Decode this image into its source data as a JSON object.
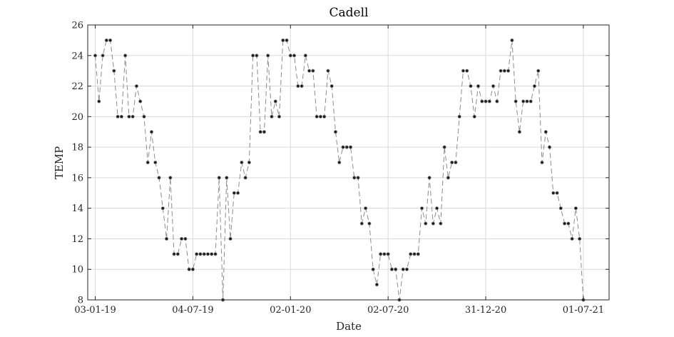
{
  "chart_data": {
    "type": "line",
    "title": "Cadell",
    "xlabel": "Date",
    "ylabel": "TEMP",
    "ylim": [
      8,
      26
    ],
    "xlim": [
      "2018-12-20",
      "2021-08-18"
    ],
    "yticks": [
      8,
      10,
      12,
      14,
      16,
      18,
      20,
      22,
      24,
      26
    ],
    "xticks": [
      {
        "date": "2019-01-03",
        "label": "03-01-19"
      },
      {
        "date": "2019-07-04",
        "label": "04-07-19"
      },
      {
        "date": "2020-01-02",
        "label": "02-01-20"
      },
      {
        "date": "2020-07-02",
        "label": "02-07-20"
      },
      {
        "date": "2020-12-31",
        "label": "31-12-20"
      },
      {
        "date": "2021-07-01",
        "label": "01-07-21"
      }
    ],
    "grid": true,
    "line_style": "dashed",
    "line_color": "#8c8c8c",
    "marker_color": "#1a1a1a",
    "series": [
      {
        "x": [
          "2019-01-03",
          "2019-01-10",
          "2019-01-17",
          "2019-01-24",
          "2019-01-31",
          "2019-02-07",
          "2019-02-14",
          "2019-02-21",
          "2019-02-28",
          "2019-03-07",
          "2019-03-14",
          "2019-03-21",
          "2019-03-28",
          "2019-04-04",
          "2019-04-11",
          "2019-04-18",
          "2019-04-25",
          "2019-05-02",
          "2019-05-09",
          "2019-05-16",
          "2019-05-23",
          "2019-05-30",
          "2019-06-06",
          "2019-06-13",
          "2019-06-20",
          "2019-06-27",
          "2019-07-04",
          "2019-07-11",
          "2019-07-18",
          "2019-07-25",
          "2019-08-01",
          "2019-08-08",
          "2019-08-15",
          "2019-08-22",
          "2019-08-29",
          "2019-09-05",
          "2019-09-12",
          "2019-09-19",
          "2019-09-26",
          "2019-10-03",
          "2019-10-10",
          "2019-10-17",
          "2019-10-24",
          "2019-10-31",
          "2019-11-07",
          "2019-11-14",
          "2019-11-21",
          "2019-11-28",
          "2019-12-05",
          "2019-12-12",
          "2019-12-19",
          "2019-12-26",
          "2020-01-02",
          "2020-01-09",
          "2020-01-16",
          "2020-01-23",
          "2020-01-30",
          "2020-02-06",
          "2020-02-13",
          "2020-02-20",
          "2020-02-27",
          "2020-03-05",
          "2020-03-12",
          "2020-03-19",
          "2020-03-26",
          "2020-04-02",
          "2020-04-09",
          "2020-04-16",
          "2020-04-23",
          "2020-04-30",
          "2020-05-07",
          "2020-05-14",
          "2020-05-21",
          "2020-05-28",
          "2020-06-04",
          "2020-06-11",
          "2020-06-18",
          "2020-06-25",
          "2020-07-02",
          "2020-07-09",
          "2020-07-16",
          "2020-07-23",
          "2020-07-30",
          "2020-08-06",
          "2020-08-13",
          "2020-08-20",
          "2020-08-27",
          "2020-09-03",
          "2020-09-10",
          "2020-09-17",
          "2020-09-24",
          "2020-10-01",
          "2020-10-08",
          "2020-10-15",
          "2020-10-22",
          "2020-10-29",
          "2020-11-05",
          "2020-11-12",
          "2020-11-19",
          "2020-11-26",
          "2020-12-03",
          "2020-12-10",
          "2020-12-17",
          "2020-12-24",
          "2020-12-31",
          "2021-01-07",
          "2021-01-14",
          "2021-01-21",
          "2021-01-28",
          "2021-02-04",
          "2021-02-11",
          "2021-02-18",
          "2021-02-25",
          "2021-03-04",
          "2021-03-11",
          "2021-03-18",
          "2021-03-25",
          "2021-04-01",
          "2021-04-08",
          "2021-04-15",
          "2021-04-22",
          "2021-04-29",
          "2021-05-06",
          "2021-05-13",
          "2021-05-20",
          "2021-05-27",
          "2021-06-03",
          "2021-06-10",
          "2021-06-17",
          "2021-06-24",
          "2021-07-01"
        ],
        "y": [
          24,
          21,
          24,
          25,
          25,
          23,
          20,
          20,
          24,
          20,
          20,
          22,
          21,
          20,
          17,
          19,
          17,
          16,
          14,
          12,
          16,
          11,
          11,
          12,
          12,
          10,
          10,
          11,
          11,
          11,
          11,
          11,
          11,
          16,
          8,
          16,
          12,
          15,
          15,
          17,
          16,
          17,
          24,
          24,
          19,
          19,
          24,
          20,
          21,
          20,
          25,
          25,
          24,
          24,
          22,
          22,
          24,
          23,
          23,
          20,
          20,
          20,
          23,
          22,
          19,
          17,
          18,
          18,
          18,
          16,
          16,
          13,
          14,
          13,
          10,
          9,
          11,
          11,
          11,
          10,
          10,
          8,
          10,
          10,
          11,
          11,
          11,
          14,
          13,
          16,
          13,
          14,
          13,
          18,
          16,
          17,
          17,
          20,
          23,
          23,
          22,
          20,
          22,
          21,
          21,
          21,
          22,
          21,
          23,
          23,
          23,
          25,
          21,
          19,
          21,
          21,
          21,
          22,
          23,
          17,
          19,
          18,
          15,
          15,
          14,
          13,
          13,
          12,
          14,
          12,
          8
        ]
      }
    ]
  }
}
